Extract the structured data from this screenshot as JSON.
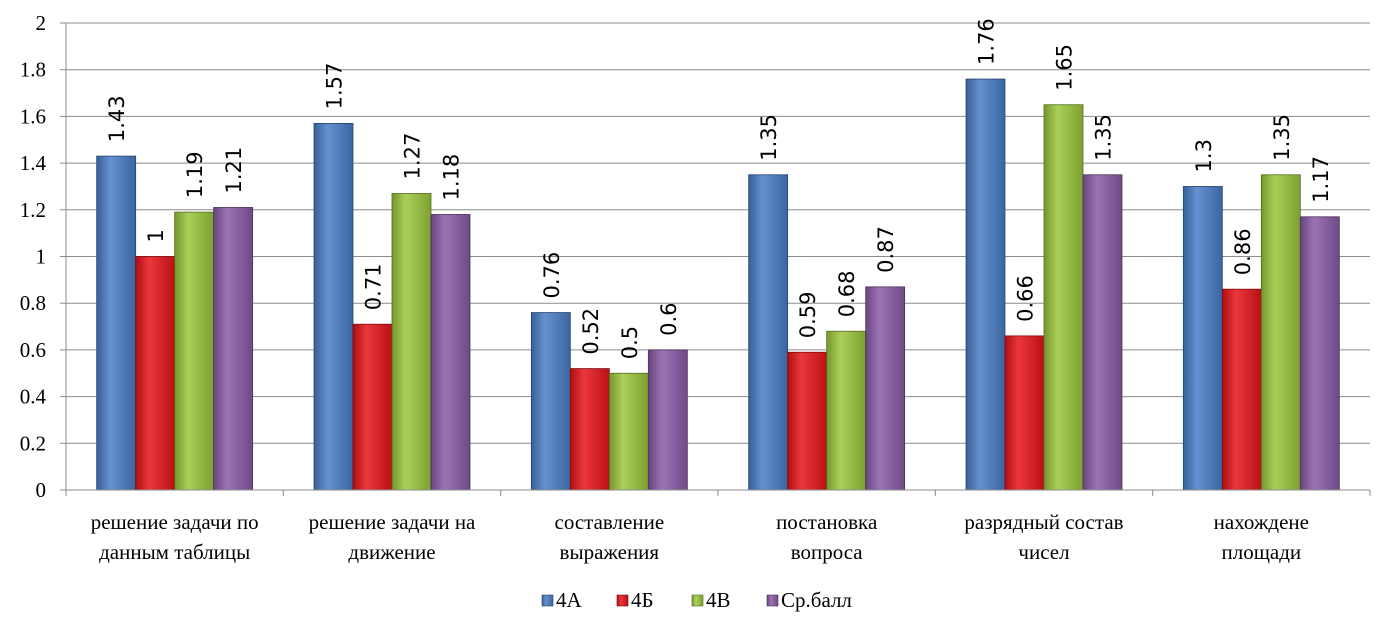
{
  "chart_data": {
    "type": "bar",
    "title": "",
    "xlabel": "",
    "ylabel": "",
    "ylim": [
      0,
      2
    ],
    "y_ticks": [
      "0",
      "0.2",
      "0.4",
      "0.6",
      "0.8",
      "1",
      "1.2",
      "1.4",
      "1.6",
      "1.8",
      "2"
    ],
    "grid": true,
    "legend_position": "bottom",
    "categories": [
      [
        "решение задачи по",
        "данным таблицы"
      ],
      [
        "решение задачи на",
        "движение"
      ],
      [
        "составление",
        "выражения"
      ],
      [
        "постановка",
        "вопроса"
      ],
      [
        "разрядный состав",
        "чисел"
      ],
      [
        "нахождене",
        "площади"
      ]
    ],
    "series": [
      {
        "name": "4А",
        "color": "#4a7ec8",
        "values": [
          1.43,
          1.57,
          0.76,
          1.35,
          1.76,
          1.3
        ],
        "labels": [
          "1.43",
          "1.57",
          "0.76",
          "1.35",
          "1.76",
          "1.3"
        ]
      },
      {
        "name": "4Б",
        "color": "#e8141a",
        "values": [
          1,
          0.71,
          0.52,
          0.59,
          0.66,
          0.86
        ],
        "labels": [
          "1",
          "0.71",
          "0.52",
          "0.59",
          "0.66",
          "0.86"
        ]
      },
      {
        "name": "4В",
        "color": "#9cc83c",
        "values": [
          1.19,
          1.27,
          0.5,
          0.68,
          1.65,
          1.35
        ],
        "labels": [
          "1.19",
          "1.27",
          "0.5",
          "0.68",
          "1.65",
          "1.35"
        ]
      },
      {
        "name": "Ср.балл",
        "color": "#8a5ca8",
        "values": [
          1.21,
          1.18,
          0.6,
          0.87,
          1.35,
          1.17
        ],
        "labels": [
          "1.21",
          "1.18",
          "0.6",
          "0.87",
          "1.35",
          "1.17"
        ]
      }
    ]
  }
}
